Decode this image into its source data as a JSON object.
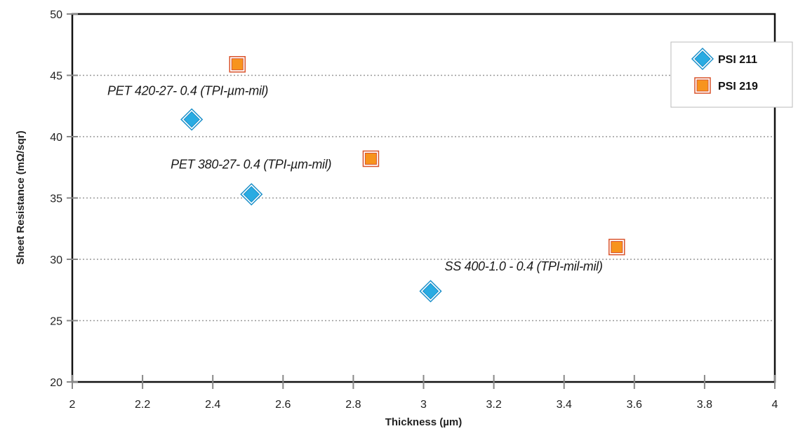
{
  "chart_data": {
    "type": "scatter",
    "xlabel": "Thickness (µm)",
    "ylabel": "Sheet Resistance (mΩ/sqr)",
    "xlim": [
      2,
      4
    ],
    "ylim": [
      20,
      50
    ],
    "x_ticks": [
      "2",
      "2.2",
      "2.4",
      "2.6",
      "2.8",
      "3",
      "3.2",
      "3.4",
      "3.6",
      "3.8",
      "4"
    ],
    "y_ticks": [
      "20",
      "25",
      "30",
      "35",
      "40",
      "45",
      "50"
    ],
    "grid": "horizontal dotted",
    "legend_position": "top-right",
    "series": [
      {
        "name": "PSI 211",
        "marker": "diamond",
        "color": "#29abe2",
        "points": [
          {
            "x": 2.34,
            "y": 41.4
          },
          {
            "x": 2.51,
            "y": 35.3
          },
          {
            "x": 3.02,
            "y": 27.4
          }
        ]
      },
      {
        "name": "PSI 219",
        "marker": "square",
        "color": "#f7941d",
        "points": [
          {
            "x": 2.47,
            "y": 45.9
          },
          {
            "x": 2.85,
            "y": 38.2
          },
          {
            "x": 3.55,
            "y": 31.0
          }
        ]
      }
    ],
    "annotations": [
      {
        "text": "PET 420-27- 0.4 (TPI-µm-mil)",
        "x": 2.1,
        "y": 43.4
      },
      {
        "text": "PET 380-27- 0.4 (TPI-µm-mil)",
        "x": 2.28,
        "y": 37.4
      },
      {
        "text": "SS 400-1.0 - 0.4 (TPI-mil-mil)",
        "x": 3.06,
        "y": 29.1
      }
    ]
  }
}
